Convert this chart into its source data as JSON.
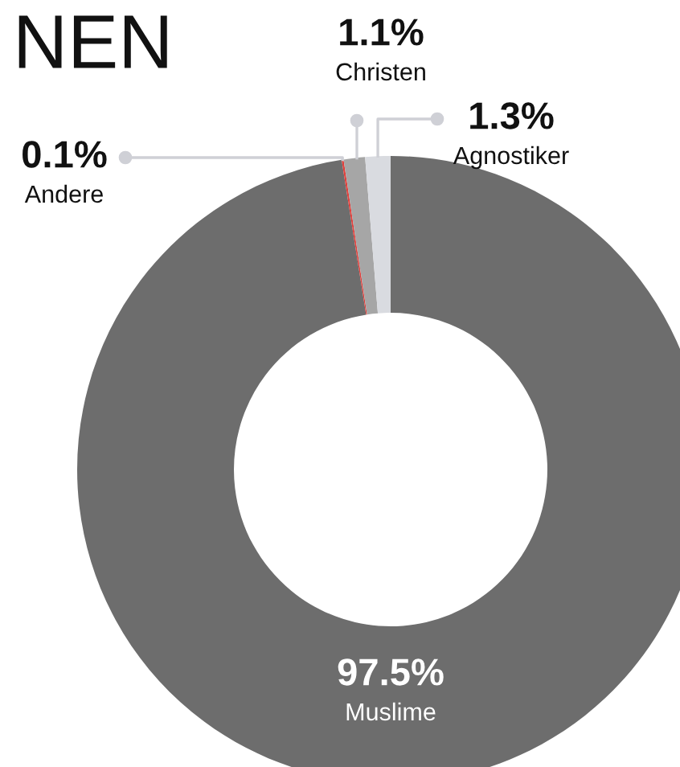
{
  "chart_data": {
    "type": "donut",
    "title": "NEN",
    "categories": [
      "Muslime",
      "Andere",
      "Christen",
      "Agnostiker"
    ],
    "values": [
      97.5,
      0.1,
      1.1,
      1.3
    ],
    "value_labels": [
      "97.5%",
      "0.1%",
      "1.1%",
      "1.3%"
    ],
    "colors": [
      "#6d6d6d",
      "#e0403c",
      "#a6a6a6",
      "#d9dbe0"
    ]
  }
}
